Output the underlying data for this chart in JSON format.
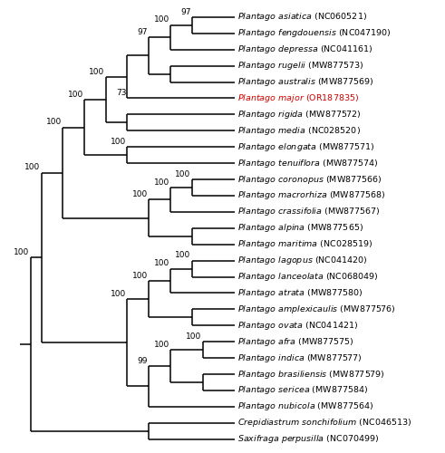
{
  "taxa": [
    {
      "name": "Plantago asiatica (NC060521)",
      "y": 27,
      "color": "black"
    },
    {
      "name": "Plantago fengdouensis (NC047190)",
      "y": 26,
      "color": "black"
    },
    {
      "name": "Plantago depressa (NC041161)",
      "y": 25,
      "color": "black"
    },
    {
      "name": "Plantago rugelii (MW877573)",
      "y": 24,
      "color": "black"
    },
    {
      "name": "Plantago australis (MW877569)",
      "y": 23,
      "color": "black"
    },
    {
      "name": "Plantago major (OR187835)",
      "y": 22,
      "color": "#cc0000"
    },
    {
      "name": "Plantago rigida (MW877572)",
      "y": 21,
      "color": "black"
    },
    {
      "name": "Plantago media (NC028520)",
      "y": 20,
      "color": "black"
    },
    {
      "name": "Plantago elongata (MW877571)",
      "y": 19,
      "color": "black"
    },
    {
      "name": "Plantago tenuiflora (MW877574)",
      "y": 18,
      "color": "black"
    },
    {
      "name": "Plantago coronopus (MW877566)",
      "y": 17,
      "color": "black"
    },
    {
      "name": "Plantago macrorhiza (MW877568)",
      "y": 16,
      "color": "black"
    },
    {
      "name": "Plantago crassifolia (MW877567)",
      "y": 15,
      "color": "black"
    },
    {
      "name": "Plantago alpina (MW877565)",
      "y": 14,
      "color": "black"
    },
    {
      "name": "Plantago maritima (NC028519)",
      "y": 13,
      "color": "black"
    },
    {
      "name": "Plantago lagopus (NC041420)",
      "y": 12,
      "color": "black"
    },
    {
      "name": "Plantago lanceolata (NC068049)",
      "y": 11,
      "color": "black"
    },
    {
      "name": "Plantago atrata (MW877580)",
      "y": 10,
      "color": "black"
    },
    {
      "name": "Plantago amplexicaulis (MW877576)",
      "y": 9,
      "color": "black"
    },
    {
      "name": "Plantago ovata (NC041421)",
      "y": 8,
      "color": "black"
    },
    {
      "name": "Plantago afra (MW877575)",
      "y": 7,
      "color": "black"
    },
    {
      "name": "Plantago indica (MW877577)",
      "y": 6,
      "color": "black"
    },
    {
      "name": "Plantago brasiliensis (MW877579)",
      "y": 5,
      "color": "black"
    },
    {
      "name": "Plantago sericea (MW877584)",
      "y": 4,
      "color": "black"
    },
    {
      "name": "Plantago nubicola (MW877564)",
      "y": 3,
      "color": "black"
    },
    {
      "name": "Crepidiastrum sonchifolium (NC046513)",
      "y": 2,
      "color": "black"
    },
    {
      "name": "Saxifraga perpusilla (NC070499)",
      "y": 1,
      "color": "black"
    }
  ],
  "background_color": "white",
  "line_color": "black",
  "line_width": 1.1,
  "font_size": 6.8,
  "bootstrap_font_size": 6.5,
  "figsize": [
    4.91,
    5.0
  ],
  "dpi": 100
}
